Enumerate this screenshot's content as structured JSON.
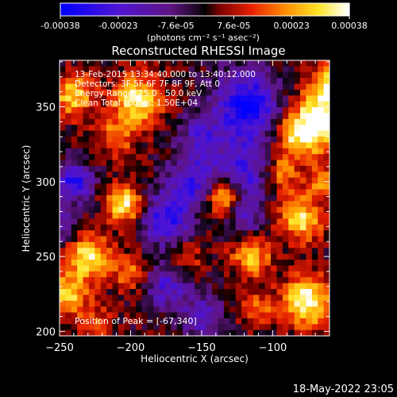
{
  "chart_data": {
    "type": "heatmap",
    "title": "Reconstructed RHESSI Image",
    "xlabel": "Heliocentric X (arcsec)",
    "ylabel": "Heliocentric Y (arcsec)",
    "xlim": [
      -250,
      -60
    ],
    "ylim": [
      197,
      381
    ],
    "x_ticks": [
      -250,
      -200,
      -150,
      -100
    ],
    "y_ticks": [
      200,
      250,
      300,
      350
    ],
    "colorbar": {
      "min": -0.00038,
      "max": 0.00038,
      "tick_labels": [
        "-0.00038",
        "-0.00023",
        "-7.6e-05",
        "7.6e-05",
        "0.00023",
        "0.00038"
      ],
      "units": "(photons cm⁻² s⁻¹ asec⁻²)",
      "colormap": "blue-purple-black-red-yellow-white"
    },
    "annotations": [
      "13-Feb-2015 13:34:40.000 to 13:40:12.000",
      "Detectors: 3F 5F 6F 7F 8F 9F, Att 0",
      "Energy Range: 25.0 - 50.0 keV",
      "Clean     Total counts: 1.50E+04"
    ],
    "peak_label": "Position of Peak = [-67,340]",
    "peak_position": [
      -67,
      340
    ],
    "grid": false
  },
  "footer": {
    "timestamp": "18-May-2022 23:05"
  }
}
